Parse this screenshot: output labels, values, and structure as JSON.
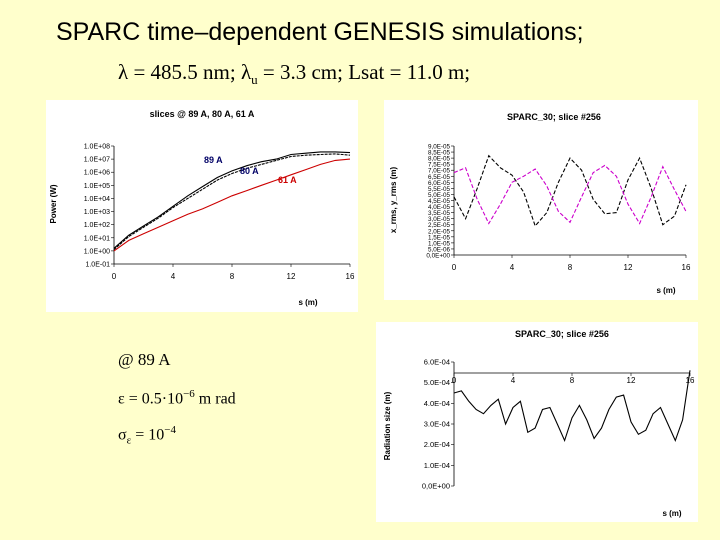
{
  "slide": {
    "title": "SPARC time–dependent GENESIS simulations;",
    "params": {
      "lambda_sym": "λ",
      "lambda_text": " = 485.5 nm; ",
      "lambdau_sym": "λ",
      "lambdau_sub": "u",
      "lambdau_text": " = 3.3 cm; Lsat = 11.0 m;"
    },
    "notes": {
      "energy": "@ 89 A",
      "emit_prefix": "ε = 0.5·10",
      "emit_exp": "−6",
      "emit_suffix": " m rad",
      "sigma_sym": "σ",
      "sigma_sub": "ε",
      "sigma_mid": " = 10",
      "sigma_exp": "−4"
    }
  },
  "chart_data": [
    {
      "type": "line",
      "title": "slices @ 89 A, 80 A, 61 A",
      "xlabel": "s (m)",
      "ylabel": "Power (W)",
      "xlim": [
        0,
        16
      ],
      "ylim_log10": [
        -1,
        8
      ],
      "x_ticks": [
        "0",
        "4",
        "8",
        "12",
        "16"
      ],
      "y_ticks": [
        "1.0E-01",
        "1.0E+00",
        "1.0E+01",
        "1.0E+02",
        "1.0E+03",
        "1.0E+04",
        "1.0E+05",
        "1.0E+06",
        "1.0E+07",
        "1.0E+08"
      ],
      "log_scale": true,
      "series": [
        {
          "name": "89 A",
          "color": "#000000",
          "x": [
            0,
            1,
            2,
            3,
            4,
            5,
            6,
            7,
            8,
            9,
            10,
            11,
            12,
            13,
            14,
            15,
            16
          ],
          "log10_y": [
            0.2,
            1.2,
            1.9,
            2.6,
            3.4,
            4.2,
            4.9,
            5.6,
            6.1,
            6.5,
            6.8,
            7.0,
            7.35,
            7.45,
            7.55,
            7.55,
            7.5
          ]
        },
        {
          "name": "80 A",
          "color": "#000000",
          "x": [
            0,
            1,
            2,
            3,
            4,
            5,
            6,
            7,
            8,
            9,
            10,
            11,
            12,
            13,
            14,
            15,
            16
          ],
          "log10_y": [
            0.1,
            1.1,
            1.8,
            2.5,
            3.3,
            4.0,
            4.7,
            5.4,
            5.9,
            6.3,
            6.6,
            6.9,
            7.2,
            7.3,
            7.35,
            7.4,
            7.3
          ]
        },
        {
          "name": "61 A",
          "color": "#cc0000",
          "x": [
            0,
            1,
            2,
            3,
            4,
            5,
            6,
            7,
            8,
            9,
            10,
            11,
            12,
            13,
            14,
            15,
            16
          ],
          "log10_y": [
            0.0,
            0.8,
            1.3,
            1.8,
            2.3,
            2.8,
            3.2,
            3.7,
            4.2,
            4.6,
            5.0,
            5.4,
            5.8,
            6.2,
            6.6,
            6.9,
            7.0
          ]
        }
      ]
    },
    {
      "type": "line",
      "title": "SPARC_30; slice #256",
      "xlabel": "s (m)",
      "ylabel": "x_rms, y_rms (m)",
      "xlim": [
        0,
        16
      ],
      "ylim": [
        0,
        9e-05
      ],
      "x_ticks": [
        "0",
        "4",
        "8",
        "12",
        "16"
      ],
      "y_ticks": [
        "0,0E+00",
        "5,0E-06",
        "1,0E-05",
        "1,5E-05",
        "2,0E-05",
        "2,5E-05",
        "3,0E-05",
        "3,5E-05",
        "4,0E-05",
        "4,5E-05",
        "5,0E-05",
        "5,5E-05",
        "6,0E-05",
        "6,5E-05",
        "7,0E-05",
        "7,5E-05",
        "8,0E-05",
        "8,5E-05",
        "9,0E-05"
      ],
      "series": [
        {
          "name": "",
          "color": "#000000",
          "x": [
            0,
            0.8,
            1.6,
            2.4,
            3.2,
            4.0,
            4.8,
            5.6,
            6.4,
            7.2,
            8.0,
            8.8,
            9.6,
            10.4,
            11.2,
            12.0,
            12.8,
            13.6,
            14.4,
            15.2,
            16.0
          ],
          "y": [
            4.8e-05,
            3e-05,
            5.5e-05,
            8.2e-05,
            7.2e-05,
            6.6e-05,
            5.2e-05,
            2.4e-05,
            3.5e-05,
            6e-05,
            8e-05,
            7e-05,
            4.6e-05,
            3.4e-05,
            3.5e-05,
            6.2e-05,
            8e-05,
            5.5e-05,
            2.5e-05,
            3.2e-05,
            5.8e-05
          ]
        },
        {
          "name": "",
          "color": "#cc00cc",
          "x": [
            0,
            0.8,
            1.6,
            2.4,
            3.2,
            4.0,
            4.8,
            5.6,
            6.4,
            7.2,
            8.0,
            8.8,
            9.6,
            10.4,
            11.2,
            12.0,
            12.8,
            13.6,
            14.4,
            15.2,
            16.0
          ],
          "y": [
            6.8e-05,
            7.2e-05,
            4.6e-05,
            2.6e-05,
            4.2e-05,
            6e-05,
            6.5e-05,
            7.1e-05,
            5.7e-05,
            3.6e-05,
            2.7e-05,
            4.8e-05,
            6.8e-05,
            7.4e-05,
            6.5e-05,
            4.2e-05,
            2.6e-05,
            4.8e-05,
            7.3e-05,
            5.4e-05,
            3.6e-05
          ]
        }
      ]
    },
    {
      "type": "line",
      "title": "SPARC_30; slice #256",
      "xlabel": "s (m)",
      "ylabel": "Radiation size (m)",
      "xlim": [
        0,
        16
      ],
      "ylim": [
        0,
        0.0006
      ],
      "x_ticks": [
        "0",
        "4",
        "8",
        "12",
        "16"
      ],
      "y_ticks": [
        "0,0E+00",
        "1.0E-04",
        "2.0E-04",
        "3.0E-04",
        "4.0E-04",
        "5.0E-04",
        "6.0E-04"
      ],
      "series": [
        {
          "name": "",
          "color": "#000000",
          "x": [
            0,
            0.5,
            1,
            1.5,
            2,
            2.5,
            3,
            3.5,
            4,
            4.5,
            5,
            5.5,
            6,
            6.5,
            7,
            7.5,
            8,
            8.5,
            9,
            9.5,
            10,
            10.5,
            11,
            11.5,
            12,
            12.5,
            13,
            13.5,
            14,
            14.5,
            15,
            15.5,
            16
          ],
          "y": [
            0.00045,
            0.00046,
            0.00041,
            0.00037,
            0.00035,
            0.00039,
            0.00042,
            0.0003,
            0.00038,
            0.00041,
            0.00026,
            0.00028,
            0.00037,
            0.00038,
            0.0003,
            0.00022,
            0.00033,
            0.00039,
            0.00032,
            0.00023,
            0.00028,
            0.00037,
            0.00043,
            0.00044,
            0.00031,
            0.00025,
            0.00027,
            0.00035,
            0.00038,
            0.0003,
            0.00022,
            0.00032,
            0.00056
          ]
        }
      ]
    }
  ]
}
